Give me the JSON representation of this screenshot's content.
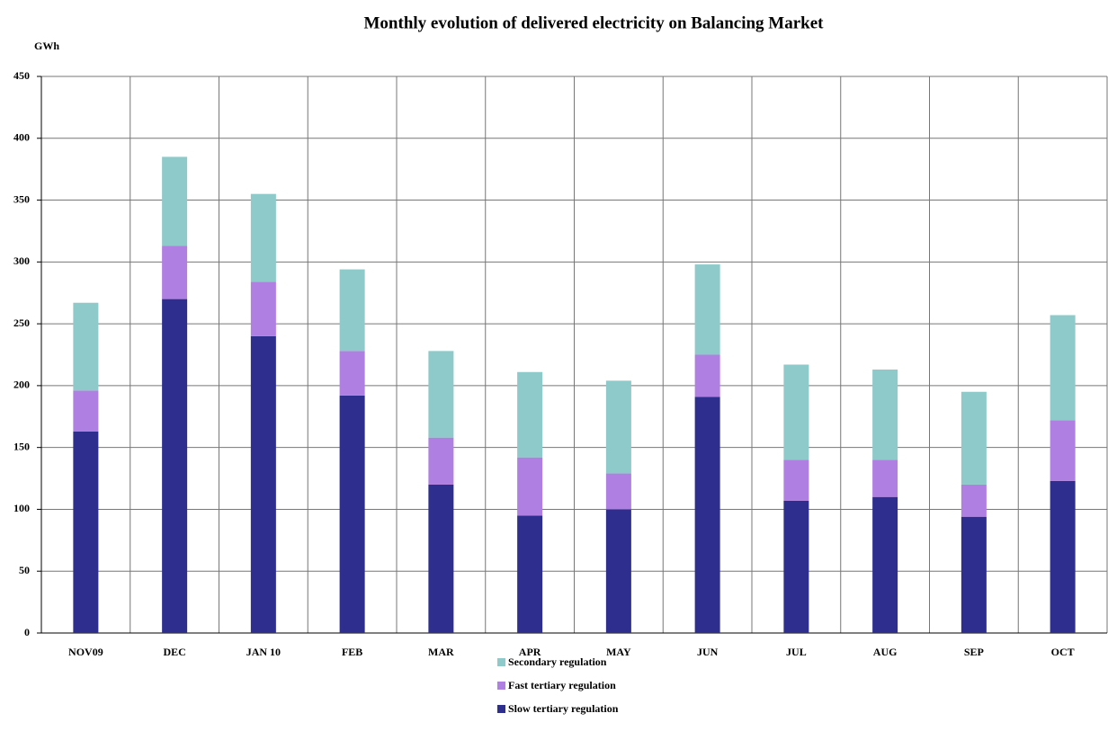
{
  "chart_data": {
    "type": "stacked_bar",
    "title": "Monthly evolution of delivered electricity on Balancing Market",
    "y_label": "GWh",
    "categories": [
      "NOV09",
      "DEC",
      "JAN 10",
      "FEB",
      "MAR",
      "APR",
      "MAY",
      "JUN",
      "JUL",
      "AUG",
      "SEP",
      "OCT"
    ],
    "series": [
      {
        "name": "Slow tertiary regulation",
        "color": "#2e2e8e",
        "values": [
          163,
          270,
          240,
          192,
          120,
          95,
          100,
          191,
          107,
          110,
          94,
          123
        ]
      },
      {
        "name": "Fast tertiary regulation",
        "color": "#b07fe2",
        "values": [
          33,
          43,
          44,
          36,
          38,
          47,
          29,
          34,
          33,
          30,
          26,
          49
        ]
      },
      {
        "name": "Secondary regulation",
        "color": "#8fcaca",
        "values": [
          71,
          72,
          71,
          66,
          70,
          69,
          75,
          73,
          77,
          73,
          75,
          85
        ]
      }
    ],
    "ylim": [
      0,
      450
    ],
    "yticks": [
      0,
      50,
      100,
      150,
      200,
      250,
      300,
      350,
      400,
      450
    ],
    "grid": true
  }
}
